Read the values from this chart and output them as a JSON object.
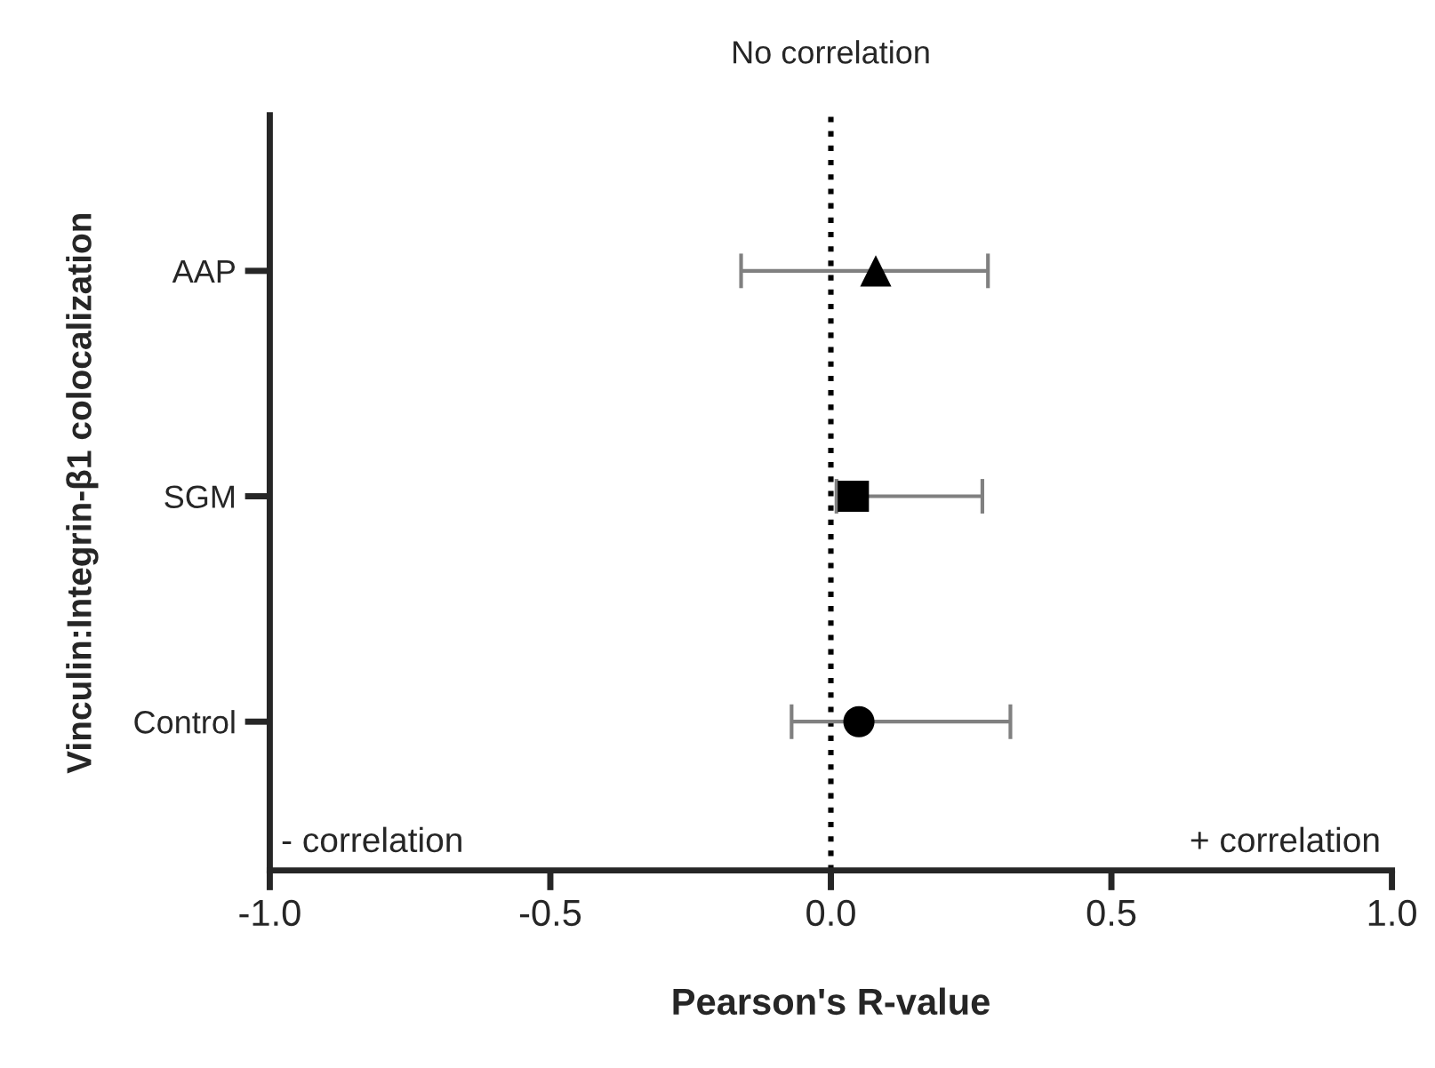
{
  "chart_data": {
    "type": "scatter",
    "orientation": "horizontal",
    "xlabel": "Pearson's R-value",
    "ylabel": "Vinculin:Integrin-β1 colocalization",
    "categories": [
      "AAP",
      "SGM",
      "Control"
    ],
    "series": [
      {
        "color": "#000000",
        "marker": "triangle",
        "values": [
          0.08,
          null,
          null
        ],
        "errors": [
          [
            -0.16,
            0.28
          ],
          null,
          null
        ]
      },
      {
        "color": "#000000",
        "marker": "square",
        "values": [
          null,
          0.04,
          null
        ],
        "errors": [
          null,
          [
            0.01,
            0.27
          ],
          null
        ]
      },
      {
        "color": "#000000",
        "marker": "circle",
        "values": [
          null,
          null,
          0.05
        ],
        "errors": [
          null,
          null,
          [
            -0.07,
            0.32
          ]
        ]
      }
    ],
    "xlim": [
      -1.0,
      1.0
    ],
    "xticks": [
      {
        "value": -1.0,
        "label": "-1.0"
      },
      {
        "value": -0.5,
        "label": "-0.5"
      },
      {
        "value": 0.0,
        "label": "0.0"
      },
      {
        "value": 0.5,
        "label": "0.5"
      },
      {
        "value": 1.0,
        "label": "1.0"
      }
    ],
    "ref_lines": [
      {
        "axis": "x",
        "value": 0.0,
        "label": "No correlation",
        "color": "#000000",
        "line_style": "dotted"
      }
    ],
    "annotations": [
      "- correlation",
      "+ correlation"
    ],
    "grid": false,
    "legend": false
  }
}
